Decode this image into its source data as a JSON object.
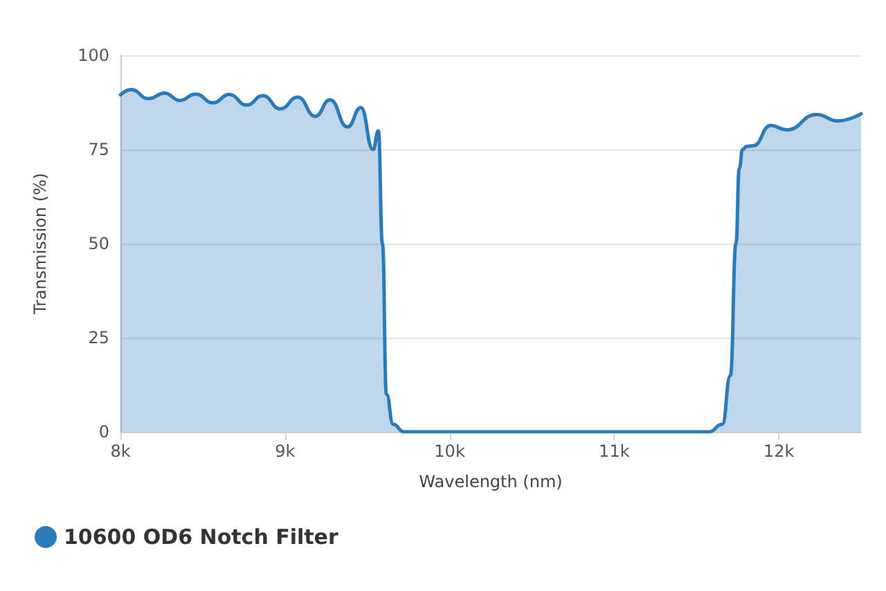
{
  "chart_data": {
    "type": "area",
    "xlabel": "Wavelength (nm)",
    "ylabel": "Transmission (%)",
    "xlim": [
      8000,
      12500
    ],
    "xticks": [
      {
        "value": 8000,
        "label": "8k"
      },
      {
        "value": 9000,
        "label": "9k"
      },
      {
        "value": 10000,
        "label": "10k"
      },
      {
        "value": 11000,
        "label": "11k"
      },
      {
        "value": 12000,
        "label": "12k"
      }
    ],
    "ylim": [
      0,
      100
    ],
    "yticks": [
      0,
      25,
      50,
      75,
      100
    ],
    "grid": "y",
    "legend": "bottom left",
    "marker": "none",
    "series": [
      {
        "name": "10600 OD6 Notch Filter",
        "color": "#2b7bba",
        "x": [
          8000,
          8065,
          8171,
          8269,
          8359,
          8457,
          8563,
          8661,
          8767,
          8865,
          8971,
          9078,
          9184,
          9273,
          9380,
          9461,
          9535,
          9567,
          9592,
          9616,
          9657,
          9722,
          10000,
          11000,
          11576,
          11657,
          11706,
          11740,
          11760,
          11780,
          11804,
          11845,
          11951,
          12049,
          12229,
          12359,
          12500
        ],
        "values": [
          89.5,
          90.9,
          88.5,
          90,
          88,
          89.7,
          87.4,
          89.6,
          86.8,
          89.3,
          85.8,
          88.9,
          83.8,
          88.2,
          81,
          86.1,
          75,
          79.9,
          50,
          10,
          2,
          0,
          0,
          0,
          0,
          2,
          15,
          50,
          70,
          75,
          75.8,
          76,
          81.4,
          80.2,
          84.3,
          82.6,
          84.5
        ]
      }
    ]
  }
}
